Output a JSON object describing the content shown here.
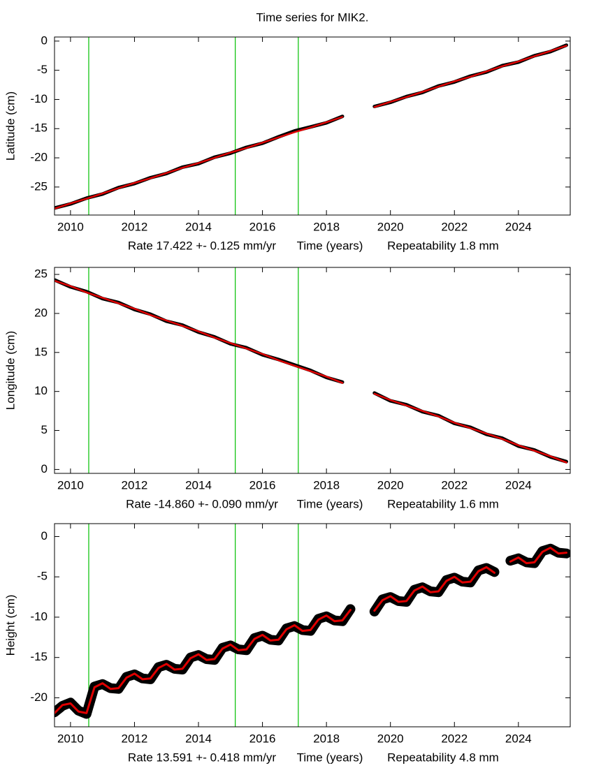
{
  "title": "Time series for MIK2.",
  "chart_data": [
    {
      "type": "line",
      "ylabel": "Latitude (cm)",
      "xlabel": "Time (years)",
      "rate": "Rate 17.422 +- 0.125 mm/yr",
      "repeatability": "Repeatability 1.8 mm",
      "xlim": [
        2009.5,
        2025.62
      ],
      "ylim": [
        -29.8,
        0.7
      ],
      "xticks": [
        2010,
        2012,
        2014,
        2016,
        2018,
        2020,
        2022,
        2024
      ],
      "yticks": [
        0,
        -5,
        -10,
        -15,
        -20,
        -25
      ],
      "events": [
        2010.57,
        2015.15,
        2017.12
      ],
      "event_color": "#00c000",
      "x": [
        2009.5,
        2010,
        2010.5,
        2011,
        2011.5,
        2012,
        2012.5,
        2013,
        2013.5,
        2014,
        2014.5,
        2015,
        2015.5,
        2016,
        2016.5,
        2017,
        2017.5,
        2018,
        2018.5,
        2019,
        2019.5,
        2020,
        2020.5,
        2021,
        2021.5,
        2022,
        2022.5,
        2023,
        2023.5,
        2024,
        2024.5,
        2025,
        2025.5
      ],
      "series": [
        {
          "color": "#000000",
          "stroke_width": 5,
          "values": [
            -28.6,
            -27.9,
            -26.9,
            -26.2,
            -25.1,
            -24.4,
            -23.4,
            -22.7,
            -21.6,
            -21.0,
            -19.9,
            -19.2,
            -18.2,
            -17.5,
            -16.4,
            -15.4,
            -14.7,
            -14.0,
            -12.9,
            null,
            -11.2,
            -10.5,
            -9.5,
            -8.8,
            -7.7,
            -7.0,
            -6.0,
            -5.3,
            -4.2,
            -3.6,
            -2.5,
            -1.8,
            -0.7
          ]
        },
        {
          "color": "#e00000",
          "stroke_width": 2.5,
          "values": [
            -28.7,
            -27.8,
            -27.0,
            -26.1,
            -25.2,
            -24.3,
            -23.5,
            -22.6,
            -21.7,
            -20.9,
            -20.0,
            -19.1,
            -18.3,
            -17.4,
            -16.5,
            -15.6,
            -14.8,
            -13.9,
            -13.0,
            null,
            -11.3,
            -10.4,
            -9.6,
            -8.7,
            -7.8,
            -6.9,
            -6.1,
            -5.2,
            -4.3,
            -3.5,
            -2.6,
            -1.7,
            -0.8
          ]
        }
      ]
    },
    {
      "type": "line",
      "ylabel": "Longitude (cm)",
      "xlabel": "Time (years)",
      "rate": "Rate -14.860 +- 0.090 mm/yr",
      "repeatability": "Repeatability 1.6 mm",
      "xlim": [
        2009.5,
        2025.62
      ],
      "ylim": [
        -0.5,
        25.9
      ],
      "xticks": [
        2010,
        2012,
        2014,
        2016,
        2018,
        2020,
        2022,
        2024
      ],
      "yticks": [
        0,
        5,
        10,
        15,
        20,
        25
      ],
      "events": [
        2010.57,
        2015.15,
        2017.12
      ],
      "event_color": "#00c000",
      "x": [
        2009.5,
        2010,
        2010.5,
        2011,
        2011.5,
        2012,
        2012.5,
        2013,
        2013.5,
        2014,
        2014.5,
        2015,
        2015.5,
        2016,
        2016.5,
        2017,
        2017.5,
        2018,
        2018.5,
        2019,
        2019.5,
        2020,
        2020.5,
        2021,
        2021.5,
        2022,
        2022.5,
        2023,
        2023.5,
        2024,
        2024.5,
        2025,
        2025.5
      ],
      "series": [
        {
          "color": "#000000",
          "stroke_width": 5,
          "values": [
            24.3,
            23.4,
            22.8,
            21.9,
            21.4,
            20.5,
            19.9,
            19.0,
            18.5,
            17.6,
            17.0,
            16.1,
            15.6,
            14.7,
            14.1,
            13.4,
            12.7,
            11.8,
            11.2,
            null,
            9.8,
            8.8,
            8.3,
            7.4,
            6.9,
            5.9,
            5.4,
            4.5,
            4.0,
            3.0,
            2.5,
            1.6,
            1.0
          ]
        },
        {
          "color": "#e00000",
          "stroke_width": 2.5,
          "values": [
            24.2,
            23.5,
            22.7,
            22.0,
            21.3,
            20.6,
            19.8,
            19.1,
            18.4,
            17.7,
            16.9,
            16.2,
            15.5,
            14.8,
            14.0,
            13.3,
            12.6,
            11.9,
            11.1,
            null,
            9.7,
            8.9,
            8.2,
            7.5,
            6.8,
            6.0,
            5.3,
            4.6,
            3.9,
            3.1,
            2.4,
            1.7,
            0.9
          ]
        }
      ]
    },
    {
      "type": "line",
      "ylabel": "Height (cm)",
      "xlabel": "Time (years)",
      "rate": "Rate 13.591 +- 0.418 mm/yr",
      "repeatability": "Repeatability 4.8 mm",
      "xlim": [
        2009.5,
        2025.62
      ],
      "ylim": [
        -23.6,
        1.6
      ],
      "xticks": [
        2010,
        2012,
        2014,
        2016,
        2018,
        2020,
        2022,
        2024
      ],
      "yticks": [
        0,
        -5,
        -10,
        -15,
        -20
      ],
      "events": [
        2010.57,
        2015.15,
        2017.12
      ],
      "event_color": "#00c000",
      "x": [
        2009.5,
        2009.75,
        2010,
        2010.25,
        2010.5,
        2010.75,
        2011,
        2011.25,
        2011.5,
        2011.75,
        2012,
        2012.25,
        2012.5,
        2012.75,
        2013,
        2013.25,
        2013.5,
        2013.75,
        2014,
        2014.25,
        2014.5,
        2014.75,
        2015,
        2015.25,
        2015.5,
        2015.75,
        2016,
        2016.25,
        2016.5,
        2016.75,
        2017,
        2017.25,
        2017.5,
        2017.75,
        2018,
        2018.25,
        2018.5,
        2018.75,
        2019,
        2019.25,
        2019.5,
        2019.75,
        2020,
        2020.25,
        2020.5,
        2020.75,
        2021,
        2021.25,
        2021.5,
        2021.75,
        2022,
        2022.25,
        2022.5,
        2022.75,
        2023,
        2023.25,
        2023.5,
        2023.75,
        2024,
        2024.25,
        2024.5,
        2024.75,
        2025,
        2025.25,
        2025.5
      ],
      "series": [
        {
          "color": "#000000",
          "stroke_width": 14,
          "values": [
            -21.8,
            -21.0,
            -20.6,
            -21.6,
            -22.0,
            -18.6,
            -18.3,
            -18.8,
            -18.9,
            -17.4,
            -17.1,
            -17.6,
            -17.7,
            -16.2,
            -15.9,
            -16.4,
            -16.5,
            -15.0,
            -14.7,
            -15.2,
            -15.3,
            -13.8,
            -13.5,
            -14.0,
            -14.1,
            -12.6,
            -12.3,
            -12.8,
            -12.9,
            -11.4,
            -11.1,
            -11.6,
            -11.7,
            -10.2,
            -9.9,
            -10.4,
            -10.5,
            -9.0,
            null,
            null,
            -9.3,
            -7.8,
            -7.5,
            -8.0,
            -8.1,
            -6.6,
            -6.3,
            -6.8,
            -6.9,
            -5.4,
            -5.1,
            -5.6,
            -5.7,
            -4.2,
            -3.9,
            -4.4,
            null,
            -3.0,
            -2.7,
            -3.2,
            -3.3,
            -1.8,
            -1.5,
            -2.0,
            -2.1
          ]
        },
        {
          "color": "#e00000",
          "stroke_width": 3,
          "values": [
            -21.9,
            -20.9,
            -20.7,
            -21.7,
            -21.9,
            -18.7,
            -18.2,
            -18.9,
            -18.8,
            -17.5,
            -17.0,
            -17.7,
            -17.6,
            -16.3,
            -15.8,
            -16.5,
            -16.4,
            -15.1,
            -14.6,
            -15.3,
            -15.2,
            -13.9,
            -13.4,
            -14.1,
            -14.0,
            -12.7,
            -12.2,
            -12.9,
            -12.8,
            -11.5,
            -11.0,
            -11.7,
            -11.6,
            -10.3,
            -9.8,
            -10.5,
            -10.4,
            -9.1,
            null,
            null,
            -9.2,
            -7.9,
            -7.4,
            -8.1,
            -8.0,
            -6.7,
            -6.2,
            -6.9,
            -6.8,
            -5.5,
            -5.0,
            -5.7,
            -5.6,
            -4.3,
            -3.8,
            -4.5,
            null,
            -3.1,
            -2.6,
            -3.3,
            -3.2,
            -1.9,
            -1.4,
            -2.1,
            -2.0
          ]
        }
      ]
    }
  ]
}
